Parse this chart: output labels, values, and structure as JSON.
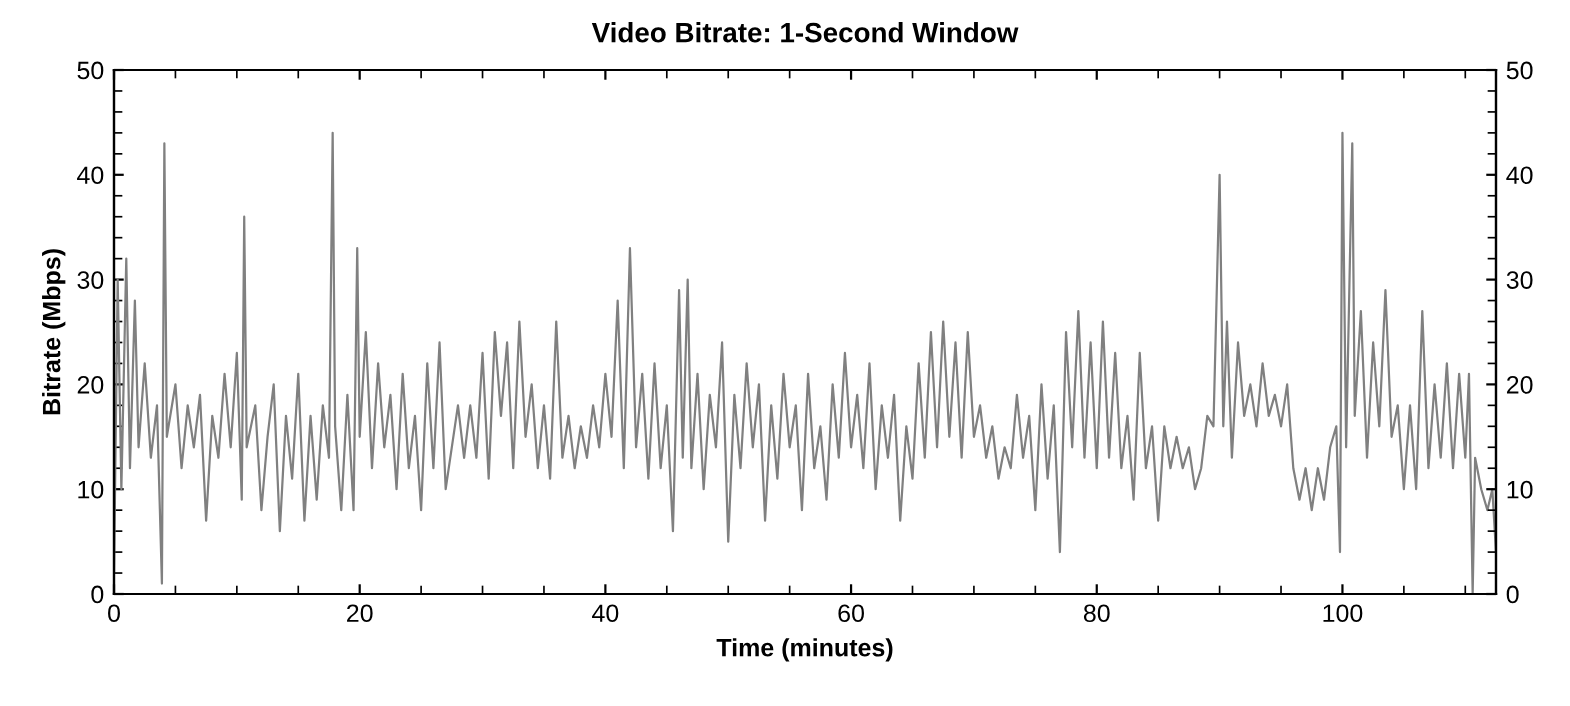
{
  "chart_data": {
    "type": "line",
    "title": "Video Bitrate: 1-Second Window",
    "xlabel": "Time (minutes)",
    "ylabel": "Bitrate (Mbps)",
    "x": [
      0,
      0.3,
      0.6,
      1,
      1.3,
      1.7,
      2,
      2.5,
      3,
      3.5,
      3.9,
      4.1,
      4.3,
      5,
      5.5,
      6,
      6.5,
      7,
      7.5,
      8,
      8.5,
      9,
      9.5,
      10,
      10.4,
      10.6,
      10.8,
      11.5,
      12,
      12.5,
      13,
      13.5,
      14,
      14.5,
      15,
      15.5,
      16,
      16.5,
      17,
      17.5,
      17.8,
      18,
      18.5,
      19,
      19.5,
      19.8,
      20,
      20.5,
      21,
      21.5,
      22,
      22.5,
      23,
      23.5,
      24,
      24.5,
      25,
      25.5,
      26,
      26.5,
      27,
      28,
      28.5,
      29,
      29.5,
      30,
      30.5,
      31,
      31.5,
      32,
      32.5,
      33,
      33.5,
      34,
      34.5,
      35,
      35.5,
      36,
      36.5,
      37,
      37.5,
      38,
      38.5,
      39,
      39.5,
      40,
      40.5,
      41,
      41.5,
      42,
      42.5,
      43,
      43.5,
      44,
      44.5,
      45,
      45.5,
      46,
      46.3,
      46.7,
      47,
      47.5,
      48,
      48.5,
      49,
      49.5,
      50,
      50.5,
      51,
      51.5,
      52,
      52.5,
      53,
      53.5,
      54,
      54.5,
      55,
      55.5,
      56,
      56.5,
      57,
      57.5,
      58,
      58.5,
      59,
      59.5,
      60,
      60.5,
      61,
      61.5,
      62,
      62.5,
      63,
      63.5,
      64,
      64.5,
      65,
      65.5,
      66,
      66.5,
      67,
      67.5,
      68,
      68.5,
      69,
      69.5,
      70,
      70.5,
      71,
      71.5,
      72,
      72.5,
      73,
      73.5,
      74,
      74.5,
      75,
      75.5,
      76,
      76.5,
      77,
      77.5,
      78,
      78.5,
      79,
      79.5,
      80,
      80.5,
      81,
      81.5,
      82,
      82.5,
      83,
      83.5,
      84,
      84.5,
      85,
      85.5,
      86,
      86.5,
      87,
      87.5,
      88,
      88.5,
      89,
      89.5,
      90,
      90.3,
      90.6,
      91,
      91.5,
      92,
      92.5,
      93,
      93.5,
      94,
      94.5,
      95,
      95.5,
      96,
      96.5,
      97,
      97.5,
      98,
      98.5,
      99,
      99.5,
      99.8,
      100,
      100.3,
      100.8,
      101,
      101.5,
      102,
      102.5,
      103,
      103.5,
      104,
      104.5,
      105,
      105.5,
      106,
      106.5,
      107,
      107.5,
      108,
      108.5,
      109,
      109.5,
      110,
      110.3,
      110.6,
      110.8,
      111.3,
      111.8,
      112.2,
      112.5
    ],
    "series": [
      {
        "color": "#808080",
        "values": [
          2,
          30,
          10,
          32,
          12,
          28,
          14,
          22,
          13,
          18,
          1,
          43,
          15,
          20,
          12,
          18,
          14,
          19,
          7,
          17,
          13,
          21,
          14,
          23,
          9,
          36,
          14,
          18,
          8,
          15,
          20,
          6,
          17,
          11,
          21,
          7,
          17,
          9,
          18,
          13,
          44,
          16,
          8,
          19,
          8,
          33,
          15,
          25,
          12,
          22,
          14,
          19,
          10,
          21,
          12,
          17,
          8,
          22,
          12,
          24,
          10,
          18,
          13,
          18,
          13,
          23,
          11,
          25,
          17,
          24,
          12,
          26,
          15,
          20,
          12,
          18,
          11,
          26,
          13,
          17,
          12,
          16,
          13,
          18,
          14,
          21,
          15,
          28,
          12,
          33,
          14,
          21,
          11,
          22,
          12,
          18,
          6,
          29,
          13,
          30,
          12,
          21,
          10,
          19,
          14,
          24,
          5,
          19,
          12,
          22,
          14,
          20,
          7,
          18,
          11,
          21,
          14,
          18,
          8,
          21,
          12,
          16,
          9,
          20,
          13,
          23,
          14,
          19,
          12,
          22,
          10,
          18,
          13,
          19,
          7,
          16,
          11,
          22,
          13,
          25,
          14,
          26,
          15,
          24,
          13,
          25,
          15,
          18,
          13,
          16,
          11,
          14,
          12,
          19,
          13,
          17,
          8,
          20,
          11,
          18,
          4,
          25,
          14,
          27,
          13,
          24,
          12,
          26,
          13,
          23,
          12,
          17,
          9,
          23,
          12,
          16,
          7,
          16,
          12,
          15,
          12,
          14,
          10,
          12,
          17,
          16,
          40,
          16,
          26,
          13,
          24,
          17,
          20,
          16,
          22,
          17,
          19,
          16,
          20,
          12,
          9,
          12,
          8,
          12,
          9,
          14,
          16,
          4,
          44,
          14,
          43,
          17,
          27,
          13,
          24,
          16,
          29,
          15,
          18,
          10,
          18,
          10,
          27,
          12,
          20,
          13,
          22,
          12,
          21,
          13,
          21,
          0,
          13,
          10,
          8,
          10,
          4
        ]
      }
    ],
    "xlim": [
      0,
      112.5
    ],
    "xticks": [
      0,
      20,
      40,
      60,
      80,
      100
    ],
    "ylim": [
      0,
      50
    ],
    "yticks": [
      0,
      10,
      20,
      30,
      40,
      50
    ],
    "y2lim": [
      0,
      50
    ],
    "y2ticks": [
      0,
      10,
      20,
      30,
      40,
      50
    ],
    "grid": false,
    "legend": false,
    "marker": "none",
    "line_style": "solid"
  }
}
